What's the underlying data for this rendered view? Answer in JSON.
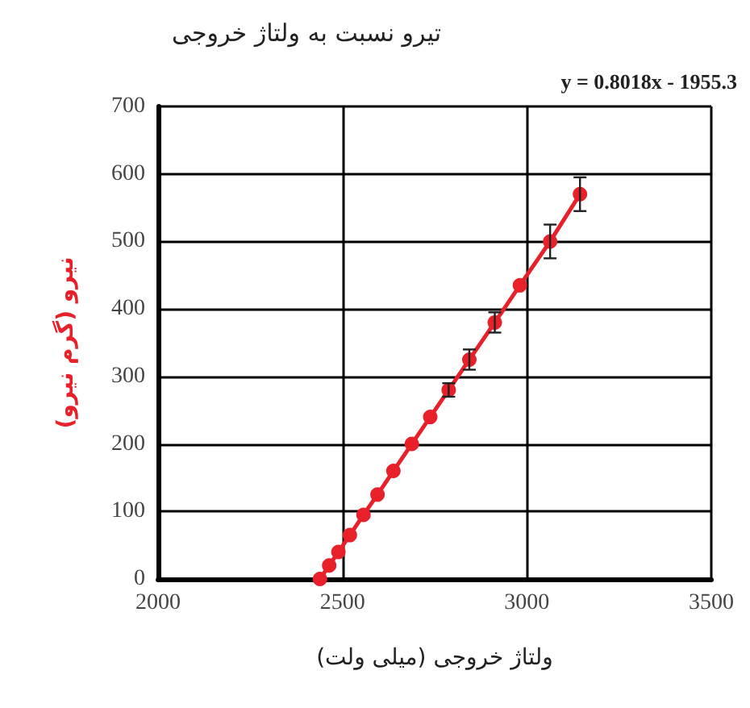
{
  "chart_data": {
    "type": "line",
    "title": "تیرو نسبت به ولتاژ خروجی",
    "xlabel": "ولتاژ خروجی (میلی ولت)",
    "ylabel": "نیرو (گرم نیرو)",
    "annotations": [
      "y = 0.8018x - 1955.3"
    ],
    "x": [
      2439,
      2464,
      2489,
      2520,
      2557,
      2595,
      2638,
      2688,
      2738,
      2788,
      2844,
      2913,
      2981,
      3063,
      3144
    ],
    "series": [
      {
        "color": "#e8202a",
        "values": [
          0,
          20,
          40,
          65,
          95,
          125,
          160,
          200,
          240,
          280,
          325,
          380,
          435,
          500,
          570
        ],
        "errors": [
          null,
          null,
          null,
          null,
          null,
          null,
          null,
          null,
          null,
          10,
          15,
          15,
          null,
          25,
          25
        ]
      }
    ],
    "xlim": [
      2000,
      3500
    ],
    "xticks": [
      2000,
      2500,
      3000,
      3500
    ],
    "ylim": [
      0,
      700
    ],
    "yticks": [
      0,
      100,
      200,
      300,
      400,
      500,
      600,
      700
    ],
    "grid": true,
    "marker": "circle",
    "line_style": "solid"
  }
}
